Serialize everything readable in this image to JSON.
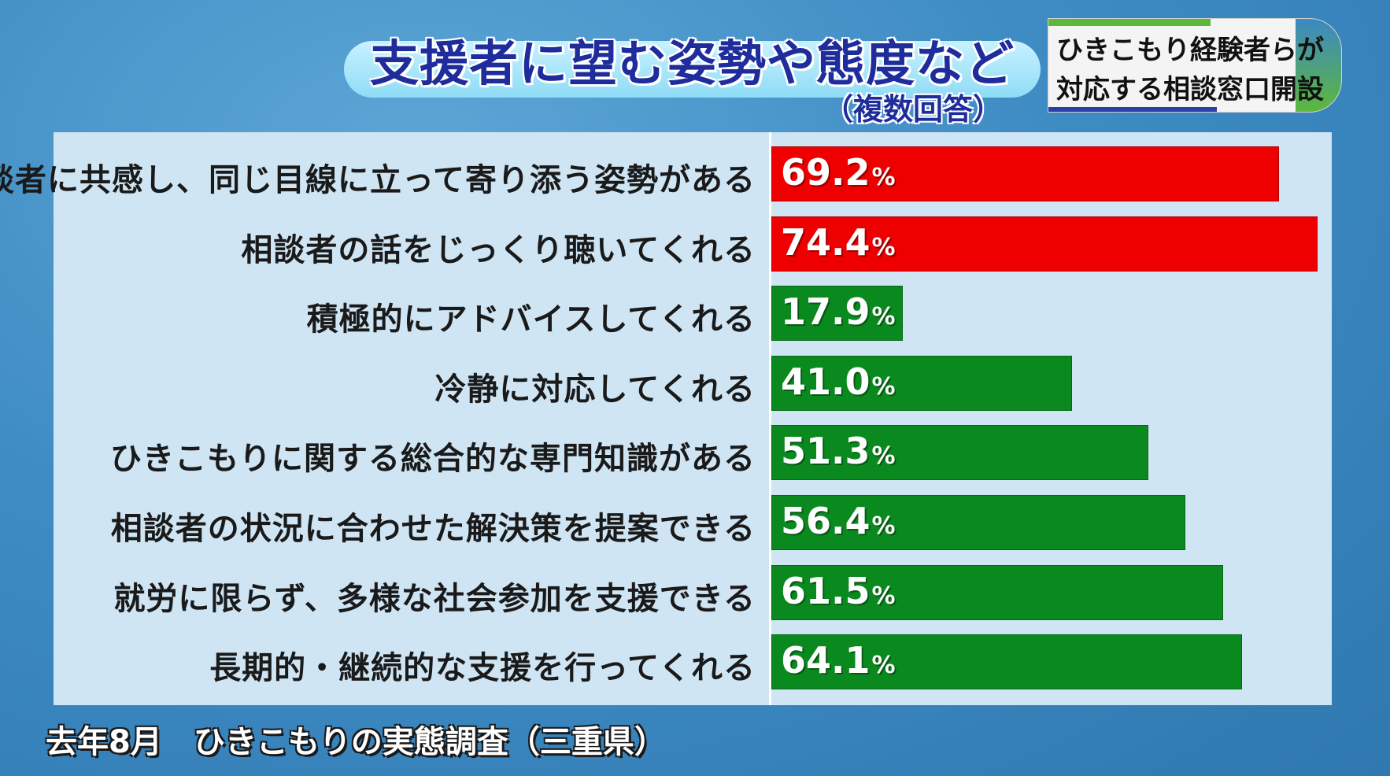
{
  "chart_data": {
    "type": "bar",
    "orientation": "horizontal",
    "title": "支援者に望む姿勢や態度など",
    "subtitle": "（複数回答）",
    "categories": [
      "相談者に共感し、同じ目線に立って寄り添う姿勢がある",
      "相談者の話をじっくり聴いてくれる",
      "積極的にアドバイスしてくれる",
      "冷静に対応してくれる",
      "ひきこもりに関する総合的な専門知識がある",
      "相談者の状況に合わせた解決策を提案できる",
      "就労に限らず、多様な社会参加を支援できる",
      "長期的・継続的な支援を行ってくれる"
    ],
    "values": [
      69.2,
      74.4,
      17.9,
      41.0,
      51.3,
      56.4,
      61.5,
      64.1
    ],
    "value_labels": [
      "69.2",
      "74.4",
      "17.9",
      "41.0",
      "51.3",
      "56.4",
      "61.5",
      "64.1"
    ],
    "unit": "%",
    "bar_colors": [
      "#ee0000",
      "#ee0000",
      "#0a8a1e",
      "#0a8a1e",
      "#0a8a1e",
      "#0a8a1e",
      "#0a8a1e",
      "#0a8a1e"
    ],
    "xlim": [
      0,
      74.4
    ],
    "grid": false,
    "legend": "none"
  },
  "side_caption": {
    "line1": "ひきこもり経験者らが",
    "line2": "対応する相談窓口開設"
  },
  "source": "去年8月　ひきこもりの実態調査（三重県）"
}
